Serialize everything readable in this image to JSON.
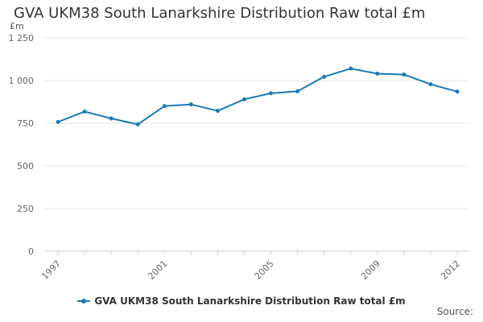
{
  "header": {
    "title": "GVA UKM38 South Lanarkshire Distribution Raw total £m",
    "unit": "£m"
  },
  "legend": {
    "label": "GVA UKM38 South Lanarkshire Distribution Raw total £m"
  },
  "footer": {
    "source": "Source:"
  },
  "colors": {
    "series": "#1a7ab5",
    "grid": "#e6e6e6",
    "axis": "#cccccc"
  },
  "chart_data": {
    "type": "line",
    "title": "GVA UKM38 South Lanarkshire Distribution Raw total £m",
    "xlabel": "",
    "ylabel": "£m",
    "x": [
      1997,
      1998,
      1999,
      2000,
      2001,
      2002,
      2003,
      2004,
      2005,
      2006,
      2007,
      2008,
      2009,
      2010,
      2011,
      2012
    ],
    "x_tick_labels": [
      "1997",
      "2001",
      "2005",
      "2009",
      "2012"
    ],
    "x_tick_values": [
      1997,
      2001,
      2005,
      2009,
      2012
    ],
    "y_tick_labels": [
      "0",
      "250",
      "500",
      "750",
      "1 000",
      "1 250"
    ],
    "y_tick_values": [
      0,
      250,
      500,
      750,
      1000,
      1250
    ],
    "ylim": [
      0,
      1250
    ],
    "grid": true,
    "legend_position": "bottom",
    "series": [
      {
        "name": "GVA UKM38 South Lanarkshire Distribution Raw total £m",
        "values": [
          757,
          818,
          778,
          743,
          850,
          860,
          822,
          890,
          925,
          937,
          1022,
          1070,
          1040,
          1035,
          978,
          935
        ]
      }
    ]
  }
}
